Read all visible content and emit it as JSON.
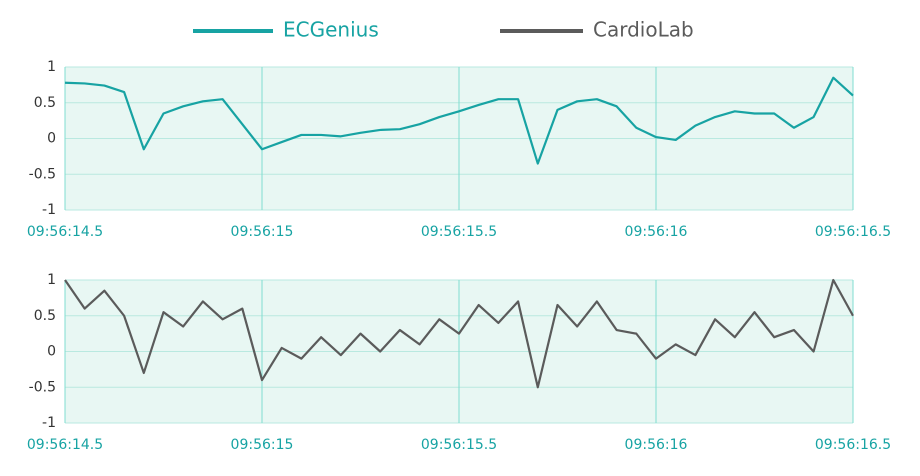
{
  "chart_data": [
    {
      "type": "line",
      "x": [
        14.5,
        14.55,
        14.6,
        14.65,
        14.7,
        14.75,
        14.8,
        14.85,
        14.9,
        14.95,
        15.0,
        15.05,
        15.1,
        15.15,
        15.2,
        15.25,
        15.3,
        15.35,
        15.4,
        15.45,
        15.5,
        15.55,
        15.6,
        15.65,
        15.7,
        15.75,
        15.8,
        15.85,
        15.9,
        15.95,
        16.0,
        16.05,
        16.1,
        16.15,
        16.2,
        16.25,
        16.3,
        16.35,
        16.4,
        16.45,
        16.5
      ],
      "series": [
        {
          "name": "ECGenius",
          "color": "#17a3a3",
          "values": [
            0.78,
            0.77,
            0.74,
            0.65,
            -0.15,
            0.35,
            0.45,
            0.52,
            0.55,
            0.2,
            -0.15,
            -0.05,
            0.05,
            0.05,
            0.03,
            0.08,
            0.12,
            0.13,
            0.2,
            0.3,
            0.38,
            0.47,
            0.55,
            0.55,
            -0.35,
            0.4,
            0.52,
            0.55,
            0.45,
            0.15,
            0.02,
            -0.02,
            0.18,
            0.3,
            0.38,
            0.35,
            0.35,
            0.15,
            0.3,
            0.85,
            0.6
          ]
        }
      ],
      "xlim": [
        14.5,
        16.5
      ],
      "xticks": [
        {
          "value": 14.5,
          "label": "09:56:14.5"
        },
        {
          "value": 15,
          "label": "09:56:15"
        },
        {
          "value": 15.5,
          "label": "09:56:15.5"
        },
        {
          "value": 16,
          "label": "09:56:16"
        },
        {
          "value": 16.5,
          "label": "09:56:16.5"
        }
      ],
      "ylim": [
        -1,
        1
      ],
      "yticks": [
        -1,
        -0.5,
        0,
        0.5,
        1
      ],
      "grid": true
    },
    {
      "type": "line",
      "x": [
        14.5,
        14.55,
        14.6,
        14.65,
        14.7,
        14.75,
        14.8,
        14.85,
        14.9,
        14.95,
        15.0,
        15.05,
        15.1,
        15.15,
        15.2,
        15.25,
        15.3,
        15.35,
        15.4,
        15.45,
        15.5,
        15.55,
        15.6,
        15.65,
        15.7,
        15.75,
        15.8,
        15.85,
        15.9,
        15.95,
        16.0,
        16.05,
        16.1,
        16.15,
        16.2,
        16.25,
        16.3,
        16.35,
        16.4,
        16.45,
        16.5
      ],
      "series": [
        {
          "name": "CardioLab",
          "color": "#5b5b5b",
          "values": [
            1.0,
            0.6,
            0.85,
            0.5,
            -0.3,
            0.55,
            0.35,
            0.7,
            0.45,
            0.6,
            -0.4,
            0.05,
            -0.1,
            0.2,
            -0.05,
            0.25,
            0.0,
            0.3,
            0.1,
            0.45,
            0.25,
            0.65,
            0.4,
            0.7,
            -0.5,
            0.65,
            0.35,
            0.7,
            0.3,
            0.25,
            -0.1,
            0.1,
            -0.05,
            0.45,
            0.2,
            0.55,
            0.2,
            0.3,
            0.0,
            1.0,
            0.5
          ]
        }
      ],
      "xlim": [
        14.5,
        16.5
      ],
      "xticks": [
        {
          "value": 14.5,
          "label": "09:56:14.5"
        },
        {
          "value": 15,
          "label": "09:56:15"
        },
        {
          "value": 15.5,
          "label": "09:56:15.5"
        },
        {
          "value": 16,
          "label": "09:56:16"
        },
        {
          "value": 16.5,
          "label": "09:56:16.5"
        }
      ],
      "ylim": [
        -1,
        1
      ],
      "yticks": [
        -1,
        -0.5,
        0,
        0.5,
        1
      ],
      "grid": true
    }
  ]
}
